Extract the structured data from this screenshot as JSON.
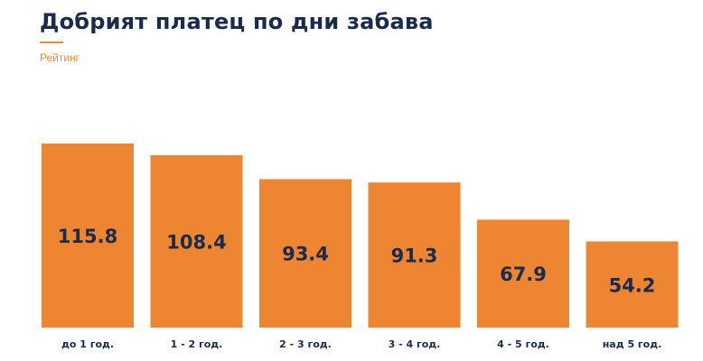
{
  "header": {
    "title": "Добрият платец по дни забава",
    "subtitle": "Рейтинг"
  },
  "colors": {
    "bar": "#ED8532",
    "text": "#1A2B4C",
    "accent": "#F08A2C"
  },
  "chart_data": {
    "type": "bar",
    "title": "Добрият платец по дни забава",
    "subtitle": "Рейтинг",
    "categories": [
      "до 1 год.",
      "1 - 2 год.",
      "2 - 3 год.",
      "3 - 4 год.",
      "4 - 5 год.",
      "над 5 год."
    ],
    "values": [
      115.8,
      108.4,
      93.4,
      91.3,
      67.9,
      54.2
    ],
    "value_labels": [
      "115.8",
      "108.4",
      "93.4",
      "91.3",
      "67.9",
      "54.2"
    ],
    "ylim": [
      0,
      115.8
    ],
    "grid": false,
    "legend": "none"
  }
}
